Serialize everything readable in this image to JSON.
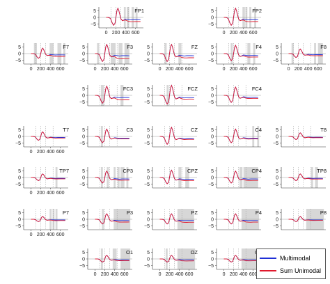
{
  "chart_data": {
    "type": "line",
    "x": [
      0,
      30,
      60,
      90,
      120,
      150,
      180,
      200,
      220,
      240,
      260,
      280,
      300,
      330,
      360,
      400,
      450,
      500,
      550,
      600,
      650,
      700
    ],
    "xticks": [
      0,
      200,
      400,
      600
    ],
    "xlim": [
      -150,
      760
    ],
    "yticks": [
      5,
      0,
      -5
    ],
    "ylim": [
      -8,
      8
    ],
    "marker_lines": [
      100,
      200,
      300,
      450
    ],
    "series": [
      {
        "name": "Multimodal",
        "color": "#1f2fd6"
      },
      {
        "name": "Sum Unimodal",
        "color": "#e0192d"
      }
    ],
    "shape_template": {
      "multimodal": [
        0,
        0,
        -0.2,
        -1.0,
        -4.0,
        -6.0,
        -4.5,
        0.5,
        5.5,
        7.0,
        5.0,
        2.0,
        -1.0,
        -2.5,
        -2.0,
        -1.2,
        -1.5,
        -1.8,
        -1.6,
        -1.6,
        -1.6,
        -1.7
      ],
      "sum_unimodal": [
        0,
        0,
        -0.2,
        -1.0,
        -4.0,
        -6.0,
        -4.5,
        0.5,
        5.5,
        7.0,
        5.0,
        2.0,
        -1.0,
        -2.5,
        -2.2,
        -2.0,
        -3.0,
        -3.3,
        -3.3,
        -3.2,
        -3.2,
        -3.2
      ]
    },
    "panels": [
      {
        "label": "FP1",
        "show_y": true,
        "show_x": true,
        "amp": 1.0,
        "diff": 1.0,
        "shaded": [
          [
            360,
            400
          ],
          [
            420,
            470
          ],
          [
            520,
            570
          ],
          [
            600,
            640
          ]
        ]
      },
      {
        "label": "FP2",
        "show_y": true,
        "show_x": true,
        "amp": 1.0,
        "diff": 1.0,
        "shaded": [
          [
            380,
            430
          ],
          [
            440,
            480
          ],
          [
            520,
            560
          ],
          [
            620,
            660
          ]
        ]
      },
      {
        "label": "F7",
        "show_y": true,
        "show_x": true,
        "amp": 0.6,
        "diff": 1.2,
        "shaded": [
          [
            60,
            120
          ],
          [
            380,
            460
          ],
          [
            540,
            620
          ],
          [
            660,
            700
          ]
        ]
      },
      {
        "label": "F3",
        "show_y": true,
        "show_x": true,
        "amp": 1.0,
        "diff": 1.4,
        "shaded": [
          [
            40,
            80
          ],
          [
            320,
            420
          ],
          [
            480,
            560
          ],
          [
            600,
            700
          ]
        ]
      },
      {
        "label": "FZ",
        "show_y": true,
        "show_x": true,
        "amp": 1.0,
        "diff": 1.0,
        "shaded": [
          [
            100,
            140
          ],
          [
            380,
            440
          ]
        ]
      },
      {
        "label": "F4",
        "show_y": true,
        "show_x": true,
        "amp": 0.9,
        "diff": 0.8,
        "shaded": [
          [
            140,
            180
          ],
          [
            480,
            540
          ],
          [
            600,
            640
          ]
        ]
      },
      {
        "label": "F8",
        "show_y": true,
        "show_x": true,
        "amp": 0.5,
        "diff": 1.0,
        "shaded": [
          [
            60,
            100
          ],
          [
            520,
            560
          ],
          [
            600,
            700
          ]
        ]
      },
      {
        "label": "FC3",
        "show_y": true,
        "show_x": false,
        "amp": 1.0,
        "diff": 1.0,
        "shaded": [
          [
            120,
            180
          ],
          [
            520,
            580
          ]
        ]
      },
      {
        "label": "FCZ",
        "show_y": true,
        "show_x": false,
        "amp": 1.1,
        "diff": 0.6,
        "shaded": [
          [
            140,
            180
          ]
        ]
      },
      {
        "label": "FC4",
        "show_y": true,
        "show_x": false,
        "amp": 0.9,
        "diff": 0.6,
        "shaded": []
      },
      {
        "label": "T7",
        "show_y": true,
        "show_x": true,
        "amp": 0.5,
        "diff": 0.5,
        "shaded": []
      },
      {
        "label": "C3",
        "show_y": true,
        "show_x": false,
        "amp": 0.8,
        "diff": 0.4,
        "shaded": [
          [
            120,
            160
          ]
        ]
      },
      {
        "label": "CZ",
        "show_y": true,
        "show_x": false,
        "amp": 1.0,
        "diff": 0.4,
        "shaded": []
      },
      {
        "label": "C4",
        "show_y": true,
        "show_x": false,
        "amp": 0.8,
        "diff": 0.5,
        "shaded": [
          [
            580,
            620
          ],
          [
            680,
            720
          ]
        ]
      },
      {
        "label": "T8",
        "show_y": true,
        "show_x": false,
        "amp": 0.4,
        "diff": 0.5,
        "shaded": []
      },
      {
        "label": "TP7",
        "show_y": true,
        "show_x": true,
        "amp": 0.4,
        "diff": 0.6,
        "shaded": [
          [
            500,
            540
          ]
        ]
      },
      {
        "label": "CP3",
        "show_y": true,
        "show_x": false,
        "amp": 0.7,
        "diff": 0.8,
        "shaded": [
          [
            120,
            160
          ],
          [
            240,
            280
          ],
          [
            380,
            420
          ],
          [
            460,
            500
          ],
          [
            520,
            600
          ],
          [
            640,
            680
          ]
        ]
      },
      {
        "label": "CPZ",
        "show_y": true,
        "show_x": false,
        "amp": 0.8,
        "diff": 0.8,
        "shaded": [
          [
            380,
            440
          ],
          [
            520,
            600
          ]
        ]
      },
      {
        "label": "CP4",
        "show_y": true,
        "show_x": false,
        "amp": 0.7,
        "diff": 1.0,
        "shaded": [
          [
            320,
            380
          ],
          [
            400,
            700
          ]
        ]
      },
      {
        "label": "TP8",
        "show_y": true,
        "show_x": false,
        "amp": 0.4,
        "diff": 0.8,
        "shaded": [
          [
            460,
            500
          ],
          [
            540,
            600
          ]
        ]
      },
      {
        "label": "P7",
        "show_y": true,
        "show_x": true,
        "amp": 0.3,
        "diff": 1.0,
        "shaded": [
          [
            380,
            420
          ],
          [
            440,
            480
          ],
          [
            500,
            540
          ]
        ]
      },
      {
        "label": "P3",
        "show_y": true,
        "show_x": false,
        "amp": 0.6,
        "diff": 1.2,
        "shaded": [
          [
            140,
            180
          ],
          [
            380,
            720
          ]
        ]
      },
      {
        "label": "PZ",
        "show_y": true,
        "show_x": false,
        "amp": 0.6,
        "diff": 1.4,
        "shaded": [
          [
            360,
            700
          ]
        ]
      },
      {
        "label": "P4",
        "show_y": true,
        "show_x": false,
        "amp": 0.6,
        "diff": 1.3,
        "shaded": [
          [
            360,
            720
          ]
        ]
      },
      {
        "label": "P8",
        "show_y": true,
        "show_x": false,
        "amp": 0.3,
        "diff": 0.8,
        "shaded": [
          [
            360,
            720
          ]
        ]
      },
      {
        "label": "O1",
        "show_y": true,
        "show_x": true,
        "amp": 0.4,
        "diff": 1.0,
        "shaded": [
          [
            120,
            160
          ],
          [
            360,
            440
          ],
          [
            520,
            720
          ]
        ]
      },
      {
        "label": "OZ",
        "show_y": true,
        "show_x": true,
        "amp": 0.4,
        "diff": 1.3,
        "shaded": [
          [
            120,
            160
          ],
          [
            360,
            720
          ]
        ]
      },
      {
        "label": "O2",
        "show_y": true,
        "show_x": true,
        "amp": 0.4,
        "diff": 1.2,
        "shaded": [
          [
            360,
            720
          ]
        ]
      }
    ]
  },
  "legend": {
    "multimodal_label": "Multimodal",
    "sum_unimodal_label": "Sum Unimodal"
  }
}
